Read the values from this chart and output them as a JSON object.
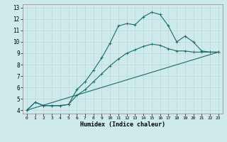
{
  "xlabel": "Humidex (Indice chaleur)",
  "bg_color": "#ceeaea",
  "grid_color": "#b8d8d8",
  "line_color": "#1a6b6b",
  "xlim": [
    -0.5,
    23.5
  ],
  "ylim": [
    3.7,
    13.3
  ],
  "xticks": [
    0,
    1,
    2,
    3,
    4,
    5,
    6,
    7,
    8,
    9,
    10,
    11,
    12,
    13,
    14,
    15,
    16,
    17,
    18,
    19,
    20,
    21,
    22,
    23
  ],
  "yticks": [
    4,
    5,
    6,
    7,
    8,
    9,
    10,
    11,
    12,
    13
  ],
  "series1_x": [
    0,
    1,
    2,
    3,
    4,
    5,
    6,
    7,
    8,
    9,
    10,
    11,
    12,
    13,
    14,
    15,
    16,
    17,
    18,
    19,
    20,
    21,
    22,
    23
  ],
  "series1_y": [
    4.0,
    4.7,
    4.4,
    4.4,
    4.4,
    4.5,
    5.8,
    6.5,
    7.5,
    8.6,
    9.9,
    11.4,
    11.6,
    11.5,
    12.2,
    12.6,
    12.4,
    11.4,
    10.0,
    10.5,
    10.0,
    9.2,
    9.1,
    9.1
  ],
  "series2_x": [
    0,
    23
  ],
  "series2_y": [
    4.0,
    9.1
  ],
  "series3_x": [
    0,
    1,
    2,
    3,
    4,
    5,
    6,
    7,
    8,
    9,
    10,
    11,
    12,
    13,
    14,
    15,
    16,
    17,
    18,
    19,
    20,
    21,
    22,
    23
  ],
  "series3_y": [
    4.0,
    4.7,
    4.4,
    4.4,
    4.4,
    4.5,
    5.3,
    5.8,
    6.5,
    7.2,
    7.9,
    8.5,
    9.0,
    9.3,
    9.6,
    9.8,
    9.7,
    9.4,
    9.2,
    9.2,
    9.1,
    9.1,
    9.1,
    9.1
  ]
}
